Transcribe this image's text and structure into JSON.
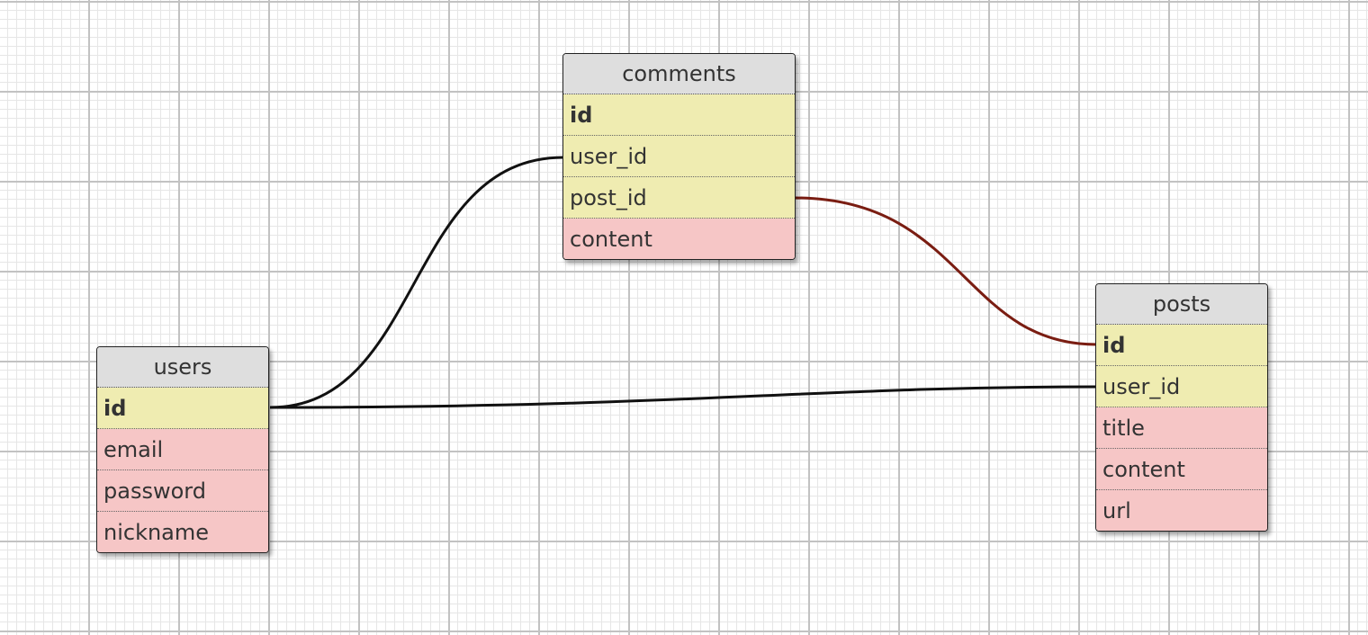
{
  "diagram": {
    "colors": {
      "header": "#dedede",
      "key_field": "#efecb1",
      "plain_field": "#f6c6c6",
      "relation_default": "#111111",
      "relation_selected": "#7a1d12"
    },
    "tables": {
      "comments": {
        "name": "comments",
        "fields": [
          {
            "name": "id",
            "kind": "primary"
          },
          {
            "name": "user_id",
            "kind": "foreign"
          },
          {
            "name": "post_id",
            "kind": "foreign"
          },
          {
            "name": "content",
            "kind": "plain"
          }
        ]
      },
      "posts": {
        "name": "posts",
        "fields": [
          {
            "name": "id",
            "kind": "primary"
          },
          {
            "name": "user_id",
            "kind": "foreign"
          },
          {
            "name": "title",
            "kind": "plain"
          },
          {
            "name": "content",
            "kind": "plain"
          },
          {
            "name": "url",
            "kind": "plain"
          }
        ]
      },
      "users": {
        "name": "users",
        "fields": [
          {
            "name": "id",
            "kind": "primary"
          },
          {
            "name": "email",
            "kind": "plain"
          },
          {
            "name": "password",
            "kind": "plain"
          },
          {
            "name": "nickname",
            "kind": "plain"
          }
        ]
      }
    },
    "relations": [
      {
        "from": "users.id",
        "to": "comments.user_id",
        "highlighted": false
      },
      {
        "from": "posts.id",
        "to": "comments.post_id",
        "highlighted": true
      },
      {
        "from": "users.id",
        "to": "posts.user_id",
        "highlighted": false
      }
    ]
  }
}
